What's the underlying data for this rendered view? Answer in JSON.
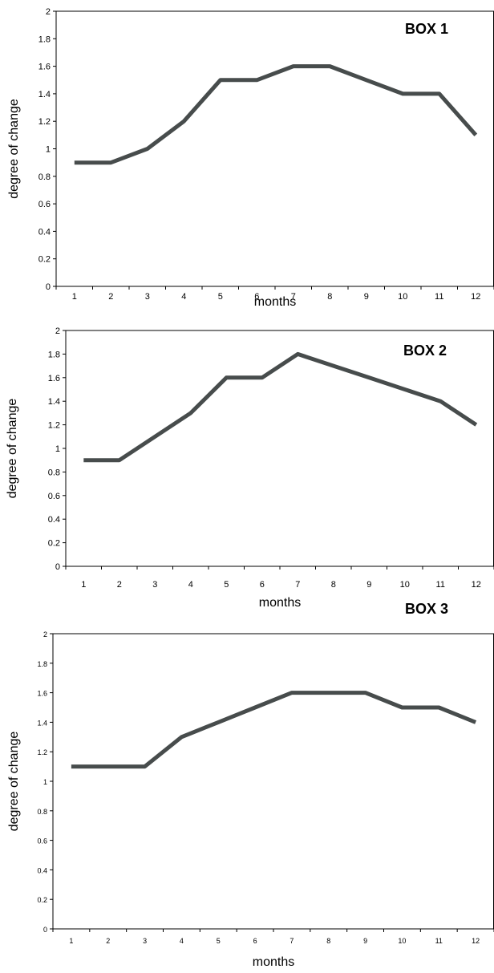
{
  "chart_data": [
    {
      "type": "line",
      "title": "BOX 1",
      "xlabel": "months",
      "ylabel": "degree of change",
      "categories": [
        "1",
        "2",
        "3",
        "4",
        "5",
        "6",
        "7",
        "8",
        "9",
        "10",
        "11",
        "12"
      ],
      "values": [
        0.9,
        0.9,
        1.0,
        1.2,
        1.5,
        1.5,
        1.6,
        1.6,
        1.5,
        1.4,
        1.4,
        1.1
      ],
      "ylim": [
        0,
        2
      ],
      "yticks": [
        "0",
        "0.2",
        "0.4",
        "0.6",
        "0.8",
        "1",
        "1.2",
        "1.4",
        "1.6",
        "1.8",
        "2"
      ],
      "grid": false,
      "line_color": "#474c4c"
    },
    {
      "type": "line",
      "title": "BOX 2",
      "xlabel": "months",
      "ylabel": "degree of change",
      "categories": [
        "1",
        "2",
        "3",
        "4",
        "5",
        "6",
        "7",
        "8",
        "9",
        "10",
        "11",
        "12"
      ],
      "values": [
        0.9,
        0.9,
        1.1,
        1.3,
        1.6,
        1.6,
        1.8,
        1.7,
        1.6,
        1.5,
        1.4,
        1.2
      ],
      "ylim": [
        0,
        2
      ],
      "yticks": [
        "0",
        "0.2",
        "0.4",
        "0.6",
        "0.8",
        "1",
        "1.2",
        "1.4",
        "1.6",
        "1.8",
        "2"
      ],
      "grid": false,
      "line_color": "#474c4c"
    },
    {
      "type": "line",
      "title": "BOX 3",
      "xlabel": "months",
      "ylabel": "degree of change",
      "categories": [
        "1",
        "2",
        "3",
        "4",
        "5",
        "6",
        "7",
        "8",
        "9",
        "10",
        "11",
        "12"
      ],
      "values": [
        1.1,
        1.1,
        1.1,
        1.3,
        1.4,
        1.5,
        1.6,
        1.6,
        1.6,
        1.5,
        1.5,
        1.4
      ],
      "ylim": [
        0,
        2
      ],
      "yticks": [
        "0",
        "0.2",
        "0.4",
        "0.6",
        "0.8",
        "1",
        "1.2",
        "1.4",
        "1.6",
        "1.8",
        "2"
      ],
      "grid": false,
      "line_color": "#474c4c"
    }
  ]
}
